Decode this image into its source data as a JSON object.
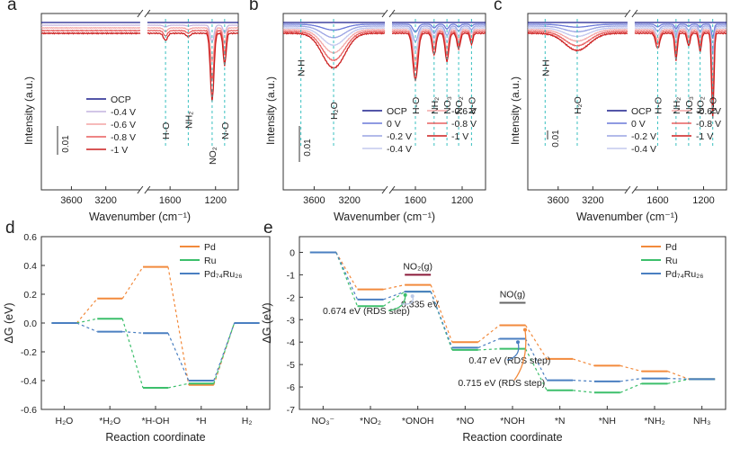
{
  "chart_data": [
    {
      "id": "a",
      "type": "line",
      "panel_label": "a",
      "xlabel": "Wavenumber (cm⁻¹)",
      "ylabel": "Intensity (a.u.)",
      "xlim": [
        3950,
        1000
      ],
      "x_ticks": [
        "3600",
        "3200",
        "1600",
        "1200"
      ],
      "scale_bar": "0.01",
      "legend": [
        "OCP",
        "-0.4 V",
        "-0.6 V",
        "-0.8 V",
        "-1 V"
      ],
      "colors": [
        "#1a1f8c",
        "#c4b3df",
        "#f3a3a3",
        "#e85d5d",
        "#cc1f1f"
      ],
      "band_labels": [
        "H-O",
        "NH₂",
        "NO₂",
        "N-O"
      ],
      "band_positions": [
        1640,
        1440,
        1230,
        1120
      ]
    },
    {
      "id": "b",
      "type": "line",
      "panel_label": "b",
      "xlabel": "Wavenumber (cm⁻¹)",
      "ylabel": "Intensity (a.u.)",
      "xlim": [
        3950,
        1000
      ],
      "x_ticks": [
        "3600",
        "3200",
        "1600",
        "1200"
      ],
      "scale_bar": "0.01",
      "legend": [
        "OCP",
        "0 V",
        "-0.2 V",
        "-0.4 V",
        "-0.6 V",
        "-0.8 V",
        "-1 V"
      ],
      "colors": [
        "#1a1f8c",
        "#6a78d8",
        "#9aa3e3",
        "#c4c8ee",
        "#f2a9a9",
        "#e86060",
        "#cc1f1f"
      ],
      "band_labels": [
        "N-H",
        "H₂O",
        "H-O",
        "NH₂",
        "NO₃",
        "NO₂",
        "N-O"
      ],
      "band_positions": [
        3750,
        3380,
        1600,
        1440,
        1330,
        1230,
        1120
      ]
    },
    {
      "id": "c",
      "type": "line",
      "panel_label": "c",
      "xlabel": "Wavenumber (cm⁻¹)",
      "ylabel": "Intensity (a.u.)",
      "xlim": [
        3950,
        1000
      ],
      "x_ticks": [
        "3600",
        "3200",
        "1600",
        "1200"
      ],
      "scale_bar": "0.01",
      "legend": [
        "OCP",
        "0 V",
        "-0.2 V",
        "-0.4 V",
        "-0.6 V",
        "-0.8 V",
        "-1 V"
      ],
      "colors": [
        "#1a1f8c",
        "#6a78d8",
        "#9aa3e3",
        "#c4c8ee",
        "#f2a9a9",
        "#e86060",
        "#cc1f1f"
      ],
      "band_labels": [
        "N-H",
        "H₂O",
        "H-O",
        "NH₂",
        "NO₃",
        "NO₂",
        "N-O"
      ],
      "band_positions": [
        3750,
        3380,
        1600,
        1440,
        1330,
        1230,
        1120
      ]
    },
    {
      "id": "d",
      "type": "line",
      "panel_label": "d",
      "xlabel": "Reaction coordinate",
      "ylabel": "ΔG (eV)",
      "ylim": [
        -0.6,
        0.6
      ],
      "y_ticks": [
        "0.6",
        "0.4",
        "0.2",
        "0.0",
        "-0.2",
        "-0.4",
        "-0.6"
      ],
      "categories": [
        "H₂O",
        "*H₂O",
        "*H-OH",
        "*H",
        "H₂"
      ],
      "series": [
        {
          "name": "Pd",
          "color": "#f28a3c",
          "values": [
            0.0,
            0.17,
            0.39,
            -0.43,
            0.0
          ]
        },
        {
          "name": "Ru",
          "color": "#3cbf6b",
          "values": [
            0.0,
            0.03,
            -0.45,
            -0.42,
            0.0
          ]
        },
        {
          "name": "Pd₇₄Ru₂₆",
          "color": "#4a7fc1",
          "values": [
            0.0,
            -0.06,
            -0.07,
            -0.4,
            0.0
          ]
        }
      ]
    },
    {
      "id": "e",
      "type": "line",
      "panel_label": "e",
      "xlabel": "Reaction coordinate",
      "ylabel": "ΔG (eV)",
      "ylim": [
        -7,
        0.7
      ],
      "y_ticks": [
        "0",
        "-1",
        "-2",
        "-3",
        "-4",
        "-5",
        "-6",
        "-7"
      ],
      "categories": [
        "NO₃⁻",
        "*NO₂",
        "*ONOH",
        "*NO",
        "*NOH",
        "*N",
        "*NH",
        "*NH₂",
        "NH₃"
      ],
      "series": [
        {
          "name": "Pd",
          "color": "#f28a3c",
          "values": [
            0.0,
            -1.65,
            -1.45,
            -4.0,
            -3.25,
            -4.75,
            -5.05,
            -5.3,
            -5.65
          ]
        },
        {
          "name": "Ru",
          "color": "#3cbf6b",
          "values": [
            0.0,
            -2.4,
            -1.75,
            -4.35,
            -4.3,
            -6.15,
            -6.25,
            -5.85,
            -5.65
          ]
        },
        {
          "name": "Pd₇₄Ru₂₆",
          "color": "#4a7fc1",
          "values": [
            0.0,
            -2.1,
            -1.75,
            -4.25,
            -3.85,
            -5.7,
            -5.75,
            -5.62,
            -5.65
          ]
        }
      ],
      "references": [
        {
          "label": "NO₂(g)",
          "category_index": 2,
          "value": -1.0,
          "color": "#8b1a3a"
        },
        {
          "label": "NO(g)",
          "category_index": 4,
          "value": -2.25,
          "color": "#666666"
        }
      ],
      "annotations": [
        {
          "text": "0.674 eV (RDS step)",
          "color": "#3cbf6b"
        },
        {
          "text": "0.335 eV",
          "color": "#b8c8e6"
        },
        {
          "text": "0.47 eV (RDS step)",
          "color": "#4a7fc1"
        },
        {
          "text": "0.715 eV (RDS step)",
          "color": "#f28a3c"
        }
      ]
    }
  ]
}
